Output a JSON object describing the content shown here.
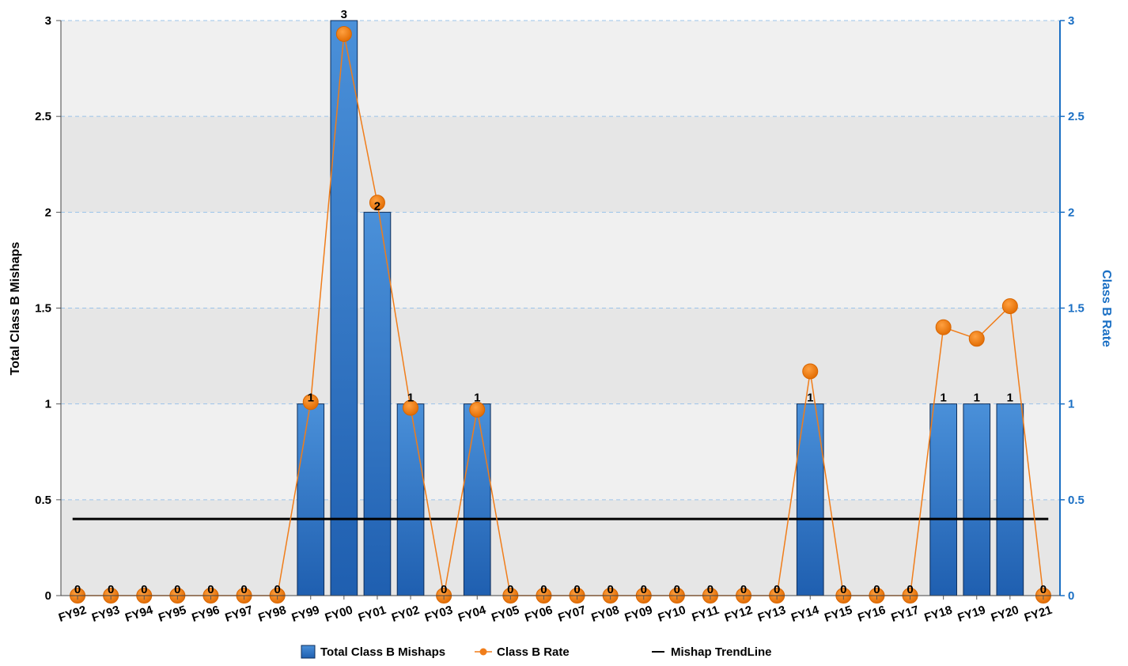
{
  "chart_data": {
    "type": "bar",
    "categories": [
      "FY92",
      "FY93",
      "FY94",
      "FY95",
      "FY96",
      "FY97",
      "FY98",
      "FY99",
      "FY00",
      "FY01",
      "FY02",
      "FY03",
      "FY04",
      "FY05",
      "FY06",
      "FY07",
      "FY08",
      "FY09",
      "FY10",
      "FY11",
      "FY12",
      "FY13",
      "FY14",
      "FY15",
      "FY16",
      "FY17",
      "FY18",
      "FY19",
      "FY20",
      "FY21"
    ],
    "series": [
      {
        "name": "Total Class B Mishaps",
        "type": "bar",
        "axis": "left",
        "color": "#2f77c8",
        "values": [
          0,
          0,
          0,
          0,
          0,
          0,
          0,
          1,
          3,
          2,
          1,
          0,
          1,
          0,
          0,
          0,
          0,
          0,
          0,
          0,
          0,
          0,
          1,
          0,
          0,
          0,
          1,
          1,
          1,
          0
        ],
        "labels": [
          "0",
          "0",
          "0",
          "0",
          "0",
          "0",
          "0",
          "1",
          "3",
          "2",
          "1",
          "0",
          "1",
          "0",
          "0",
          "0",
          "0",
          "0",
          "0",
          "0",
          "0",
          "0",
          "1",
          "0",
          "0",
          "0",
          "1",
          "1",
          "1",
          "0"
        ]
      },
      {
        "name": "Class B Rate",
        "type": "line",
        "axis": "right",
        "color": "#f07d1a",
        "values": [
          0,
          0,
          0,
          0,
          0,
          0,
          0,
          1.01,
          2.93,
          2.05,
          0.98,
          0,
          0.97,
          0,
          0,
          0,
          0,
          0,
          0,
          0,
          0,
          0,
          1.17,
          0,
          0,
          0,
          1.4,
          1.34,
          1.51,
          0
        ]
      },
      {
        "name": "Mishap TrendLine",
        "type": "line",
        "axis": "left",
        "color": "#000000",
        "values": [
          0.4,
          0.4,
          0.4,
          0.4,
          0.4,
          0.4,
          0.4,
          0.4,
          0.4,
          0.4,
          0.4,
          0.4,
          0.4,
          0.4,
          0.4,
          0.4,
          0.4,
          0.4,
          0.4,
          0.4,
          0.4,
          0.4,
          0.4,
          0.4,
          0.4,
          0.4,
          0.4,
          0.4,
          0.4,
          0.4
        ]
      }
    ],
    "ylabel": "Total Class B Mishaps",
    "y2label": "Class B Rate",
    "ylim": [
      0,
      3
    ],
    "y2lim": [
      0,
      3
    ],
    "yticks": [
      "0",
      "0.5",
      "1",
      "1.5",
      "2",
      "2.5",
      "3"
    ],
    "y2ticks": [
      "0",
      "0.5",
      "1",
      "1.5",
      "2",
      "2.5",
      "3"
    ],
    "grid": true,
    "legend_position": "bottom-center"
  }
}
